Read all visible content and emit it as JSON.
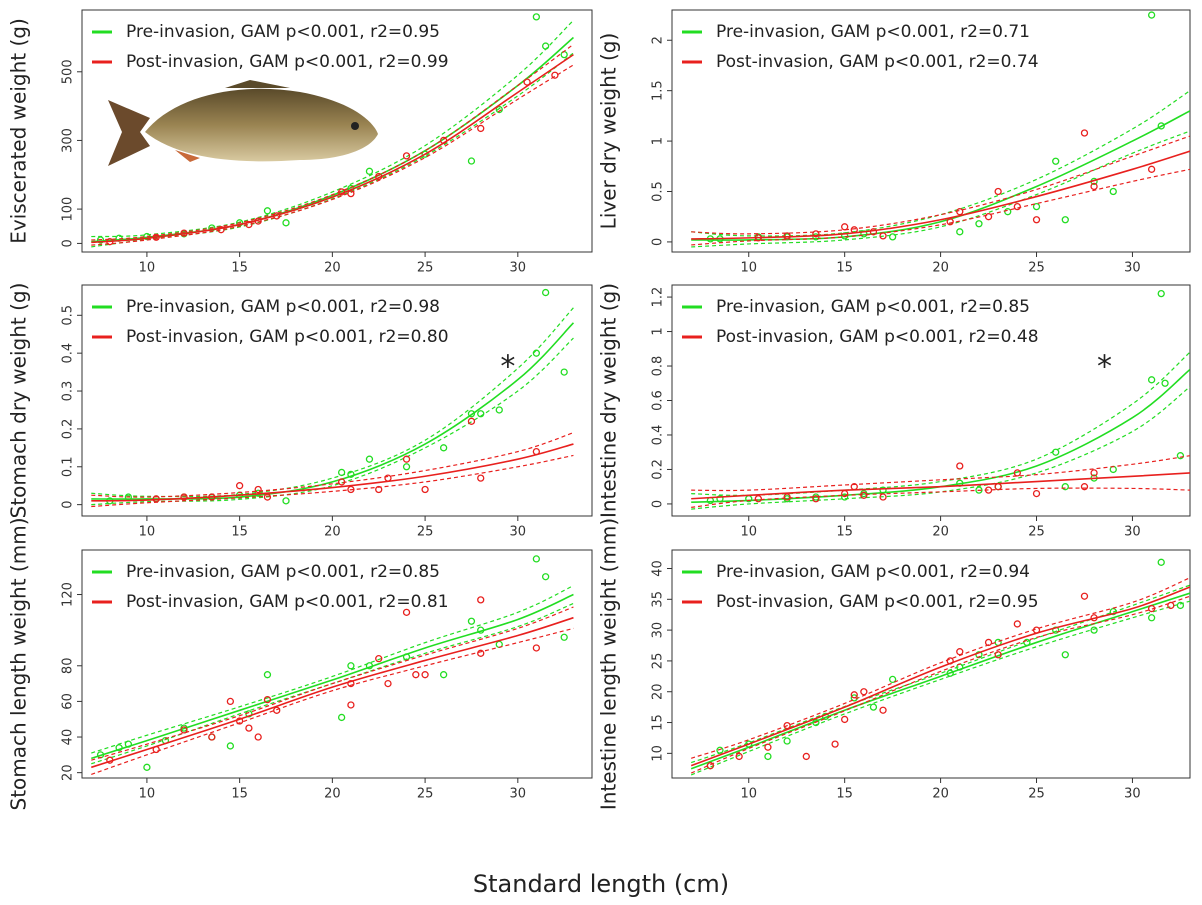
{
  "xlabel": "Standard length (cm)",
  "chart_data": [
    {
      "type": "scatter",
      "ylabel": "Eviscerated weight (g)",
      "xlim": [
        6.5,
        34
      ],
      "xticks": [
        10,
        15,
        20,
        25,
        30
      ],
      "ylim": [
        -25,
        680
      ],
      "yticks": [
        0,
        100,
        300,
        500
      ],
      "fit_x": [
        7,
        10,
        15,
        20,
        25,
        30,
        33
      ],
      "series": [
        {
          "name": "Pre-invasion, GAM p<0.001, r2=0.95",
          "color": "#22dd22",
          "x": [
            7.5,
            8.5,
            10,
            12,
            13.5,
            15,
            16.5,
            17.5,
            21,
            22,
            25,
            27.5,
            29,
            31,
            31.5,
            32.5
          ],
          "values": [
            10,
            15,
            20,
            28,
            45,
            60,
            95,
            60,
            160,
            210,
            260,
            240,
            390,
            660,
            575,
            550
          ],
          "fit": [
            5,
            18,
            55,
            140,
            270,
            460,
            600
          ],
          "fit_lower": [
            -10,
            12,
            48,
            130,
            255,
            430,
            555
          ],
          "fit_upper": [
            20,
            25,
            62,
            150,
            285,
            490,
            650
          ]
        },
        {
          "name": "Post-invasion, GAM p<0.001, r2=0.99",
          "color": "#e8201e",
          "x": [
            8,
            10.5,
            12,
            14,
            15.5,
            16,
            17,
            20.5,
            21,
            22.5,
            24,
            26,
            28,
            30.5,
            32
          ],
          "values": [
            5,
            18,
            30,
            40,
            55,
            65,
            80,
            150,
            145,
            195,
            255,
            300,
            335,
            470,
            490
          ],
          "fit": [
            3,
            15,
            55,
            135,
            260,
            440,
            550
          ],
          "fit_lower": [
            -5,
            10,
            50,
            128,
            250,
            420,
            520
          ],
          "fit_upper": [
            10,
            20,
            60,
            142,
            270,
            460,
            580
          ]
        }
      ]
    },
    {
      "type": "scatter",
      "ylabel": "Liver dry weight (g)",
      "xlim": [
        6,
        33
      ],
      "xticks": [
        10,
        15,
        20,
        25,
        30
      ],
      "ylim": [
        -0.1,
        2.3
      ],
      "yticks": [
        0.0,
        0.5,
        1.0,
        1.5,
        2.0
      ],
      "fit_x": [
        7,
        10,
        15,
        20,
        25,
        30,
        33
      ],
      "series": [
        {
          "name": "Pre-invasion, GAM p<0.001, r2=0.71",
          "color": "#22dd22",
          "x": [
            8,
            8.5,
            10.5,
            12,
            13.5,
            15,
            16,
            17.5,
            21,
            22,
            23.5,
            25,
            26,
            26.5,
            28,
            29,
            31,
            31.5
          ],
          "values": [
            0.03,
            0.03,
            0.05,
            0.05,
            0.05,
            0.06,
            0.08,
            0.05,
            0.1,
            0.18,
            0.3,
            0.35,
            0.8,
            0.22,
            0.6,
            0.5,
            2.25,
            1.15
          ],
          "fit": [
            0.02,
            0.02,
            0.05,
            0.2,
            0.55,
            1.0,
            1.3
          ],
          "fit_lower": [
            -0.05,
            -0.02,
            0.02,
            0.15,
            0.47,
            0.88,
            1.1
          ],
          "fit_upper": [
            0.1,
            0.06,
            0.09,
            0.27,
            0.62,
            1.12,
            1.5
          ]
        },
        {
          "name": "Post-invasion, GAM p<0.001, r2=0.74",
          "color": "#e8201e",
          "x": [
            10.5,
            12,
            13.5,
            15,
            15.5,
            16.5,
            17,
            20.5,
            21,
            22.5,
            23,
            24,
            25,
            27.5,
            28,
            31
          ],
          "values": [
            0.04,
            0.06,
            0.08,
            0.15,
            0.12,
            0.1,
            0.06,
            0.2,
            0.3,
            0.25,
            0.5,
            0.35,
            0.22,
            1.08,
            0.55,
            0.72
          ],
          "fit": [
            0.03,
            0.04,
            0.08,
            0.22,
            0.45,
            0.72,
            0.9
          ],
          "fit_lower": [
            -0.03,
            0.01,
            0.05,
            0.17,
            0.38,
            0.6,
            0.72
          ],
          "fit_upper": [
            0.1,
            0.08,
            0.12,
            0.27,
            0.52,
            0.85,
            1.05
          ]
        }
      ]
    },
    {
      "type": "scatter",
      "ylabel": "Stomach dry weight (g)",
      "xlim": [
        6.5,
        34
      ],
      "xticks": [
        10,
        15,
        20,
        25,
        30
      ],
      "ylim": [
        -0.03,
        0.58
      ],
      "yticks": [
        0.0,
        0.1,
        0.2,
        0.3,
        0.4,
        0.5
      ],
      "annotation": "*",
      "fit_x": [
        7,
        10,
        15,
        20,
        25,
        30,
        33
      ],
      "series": [
        {
          "name": "Pre-invasion, GAM p<0.001, r2=0.98",
          "color": "#22dd22",
          "x": [
            8,
            9,
            10.5,
            12,
            13.5,
            15,
            16,
            17.5,
            20.5,
            21,
            22,
            24,
            26,
            27.5,
            28,
            29,
            31,
            31.5,
            32.5
          ],
          "values": [
            0.01,
            0.02,
            0.015,
            0.02,
            0.02,
            0.025,
            0.03,
            0.01,
            0.085,
            0.08,
            0.12,
            0.1,
            0.15,
            0.24,
            0.24,
            0.25,
            0.4,
            0.56,
            0.35
          ],
          "fit": [
            0.015,
            0.015,
            0.02,
            0.06,
            0.16,
            0.33,
            0.48
          ],
          "fit_lower": [
            0,
            0.008,
            0.014,
            0.05,
            0.15,
            0.3,
            0.44
          ],
          "fit_upper": [
            0.03,
            0.022,
            0.027,
            0.07,
            0.17,
            0.36,
            0.52
          ]
        },
        {
          "name": "Post-invasion, GAM p<0.001, r2=0.80",
          "color": "#e8201e",
          "x": [
            10.5,
            12,
            13.5,
            15,
            16,
            16.5,
            20.5,
            21,
            22.5,
            23,
            24,
            25,
            27.5,
            28,
            31
          ],
          "values": [
            0.015,
            0.02,
            0.02,
            0.05,
            0.04,
            0.02,
            0.06,
            0.04,
            0.04,
            0.07,
            0.12,
            0.04,
            0.22,
            0.07,
            0.14
          ],
          "fit": [
            0.01,
            0.012,
            0.025,
            0.045,
            0.075,
            0.12,
            0.16
          ],
          "fit_lower": [
            -0.005,
            0.005,
            0.018,
            0.035,
            0.06,
            0.1,
            0.13
          ],
          "fit_upper": [
            0.025,
            0.02,
            0.032,
            0.055,
            0.09,
            0.14,
            0.19
          ]
        }
      ]
    },
    {
      "type": "scatter",
      "ylabel": "Intestine dry weight (g)",
      "xlim": [
        6,
        33
      ],
      "xticks": [
        10,
        15,
        20,
        25,
        30
      ],
      "ylim": [
        -0.07,
        1.27
      ],
      "yticks": [
        0.0,
        0.2,
        0.4,
        0.6,
        0.8,
        1.0,
        1.2
      ],
      "annotation": "*",
      "fit_x": [
        7,
        10,
        15,
        20,
        25,
        30,
        33
      ],
      "series": [
        {
          "name": "Pre-invasion, GAM p<0.001, r2=0.85",
          "color": "#22dd22",
          "x": [
            8,
            8.5,
            10,
            12,
            13.5,
            15,
            16,
            17,
            21,
            22,
            23,
            26,
            26.5,
            28,
            29,
            31,
            31.5,
            31.7,
            32.5
          ],
          "values": [
            0.02,
            0.03,
            0.03,
            0.03,
            0.04,
            0.04,
            0.06,
            0.08,
            0.12,
            0.08,
            0.1,
            0.3,
            0.1,
            0.15,
            0.2,
            0.72,
            1.22,
            0.7,
            0.28
          ],
          "fit": [
            0.01,
            0.02,
            0.05,
            0.1,
            0.22,
            0.5,
            0.78
          ],
          "fit_lower": [
            -0.03,
            0,
            0.03,
            0.07,
            0.18,
            0.42,
            0.68
          ],
          "fit_upper": [
            0.06,
            0.05,
            0.08,
            0.13,
            0.26,
            0.58,
            0.88
          ]
        },
        {
          "name": "Post-invasion, GAM p<0.001, r2=0.48",
          "color": "#e8201e",
          "x": [
            10.5,
            12,
            13.5,
            15,
            15.5,
            16,
            17,
            21,
            22.5,
            23,
            24,
            25,
            27.5,
            28
          ],
          "values": [
            0.03,
            0.04,
            0.03,
            0.06,
            0.1,
            0.05,
            0.04,
            0.22,
            0.08,
            0.1,
            0.18,
            0.06,
            0.1,
            0.18
          ],
          "fit": [
            0.03,
            0.05,
            0.08,
            0.1,
            0.13,
            0.16,
            0.18
          ],
          "fit_lower": [
            -0.02,
            0.02,
            0.05,
            0.07,
            0.09,
            0.09,
            0.08
          ],
          "fit_upper": [
            0.08,
            0.08,
            0.11,
            0.14,
            0.17,
            0.23,
            0.28
          ]
        }
      ]
    },
    {
      "type": "scatter",
      "ylabel": "Stomach length weight (mm)",
      "xlim": [
        6.5,
        34
      ],
      "xticks": [
        10,
        15,
        20,
        25,
        30
      ],
      "ylim": [
        17,
        145
      ],
      "yticks": [
        20,
        40,
        60,
        80,
        120
      ],
      "fit_x": [
        7,
        10,
        15,
        20,
        25,
        30,
        33
      ],
      "series": [
        {
          "name": "Pre-invasion, GAM p<0.001, r2=0.85",
          "color": "#22dd22",
          "x": [
            7.5,
            8.5,
            9,
            10,
            11,
            12,
            13.5,
            14.5,
            15.5,
            16.5,
            20.5,
            21,
            22,
            24,
            26,
            27.5,
            28,
            29,
            31,
            31.5,
            32.5
          ],
          "values": [
            30,
            34,
            36,
            23,
            38,
            45,
            40,
            35,
            53,
            75,
            51,
            80,
            80,
            85,
            75,
            105,
            100,
            92,
            140,
            130,
            96
          ],
          "fit": [
            28,
            38,
            55,
            72,
            90,
            106,
            120
          ],
          "fit_lower": [
            25,
            35,
            53,
            70,
            87,
            102,
            115
          ],
          "fit_upper": [
            31,
            41,
            57,
            74,
            93,
            110,
            125
          ]
        },
        {
          "name": "Post-invasion, GAM p<0.001, r2=0.81",
          "color": "#e8201e",
          "x": [
            8,
            10.5,
            12,
            13.5,
            14.5,
            15,
            15.5,
            16,
            16.5,
            17,
            21,
            21,
            22.5,
            23,
            24,
            24.5,
            25,
            28,
            28,
            31
          ],
          "values": [
            27,
            33,
            44,
            40,
            60,
            49,
            45,
            40,
            61,
            55,
            58,
            70,
            84,
            70,
            110,
            75,
            75,
            117,
            87,
            90
          ],
          "fit": [
            23,
            33,
            50,
            68,
            83,
            97,
            107
          ],
          "fit_lower": [
            19,
            30,
            48,
            66,
            80,
            93,
            101
          ],
          "fit_upper": [
            27,
            36,
            52,
            70,
            86,
            101,
            113
          ]
        }
      ]
    },
    {
      "type": "scatter",
      "ylabel": "Intestine length weight (mm)",
      "xlim": [
        6,
        33
      ],
      "xticks": [
        10,
        15,
        20,
        25,
        30
      ],
      "ylim": [
        6,
        43
      ],
      "yticks": [
        10,
        15,
        20,
        25,
        30,
        35,
        40
      ],
      "fit_x": [
        7,
        10,
        15,
        20,
        25,
        30,
        33
      ],
      "series": [
        {
          "name": "Pre-invasion, GAM p<0.001, r2=0.94",
          "color": "#22dd22",
          "x": [
            8,
            8.5,
            10,
            11,
            12,
            13.5,
            14,
            15.5,
            16.5,
            17.5,
            20.5,
            21,
            22,
            23,
            24.5,
            26,
            26.5,
            28,
            29,
            31,
            31.5,
            32.5
          ],
          "values": [
            8,
            10.5,
            11.5,
            9.5,
            12,
            15,
            16,
            19,
            17.5,
            22,
            23,
            24,
            26,
            28,
            28,
            30,
            26,
            30,
            33,
            32,
            41,
            34
          ],
          "fit": [
            7.5,
            11,
            17,
            22.5,
            28,
            33,
            36
          ],
          "fit_lower": [
            6.5,
            10.3,
            16.4,
            22,
            27.3,
            32,
            34.7
          ],
          "fit_upper": [
            8.5,
            11.7,
            17.6,
            23,
            28.7,
            34,
            37.3
          ]
        },
        {
          "name": "Post-invasion, GAM p<0.001, r2=0.95",
          "color": "#e8201e",
          "x": [
            8,
            9.5,
            11,
            12,
            13,
            14.5,
            15,
            15.5,
            16,
            17,
            20.5,
            21,
            22.5,
            23,
            24,
            25,
            27.5,
            28,
            31,
            32
          ],
          "values": [
            8,
            9.5,
            11,
            14.5,
            9.5,
            11.5,
            15.5,
            19.5,
            20,
            17,
            25,
            26.5,
            28,
            26,
            31,
            30,
            35.5,
            32,
            33.5,
            34
          ],
          "fit": [
            8,
            11.5,
            17.5,
            24,
            29.5,
            33.5,
            37
          ],
          "fit_lower": [
            6.8,
            10.8,
            16.9,
            23.3,
            28.8,
            32.5,
            35.5
          ],
          "fit_upper": [
            9.2,
            12.2,
            18.1,
            24.7,
            30.2,
            34.5,
            38.5
          ]
        }
      ]
    }
  ]
}
